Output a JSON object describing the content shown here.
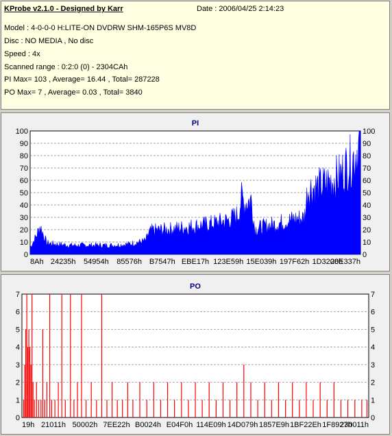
{
  "header": {
    "title": "KProbe v2.1.0 - Designed by Karr",
    "date": "Date : 2006/04/25 2:14:23",
    "lines": [
      "Model : 4-0-0-0 H:LITE-ON DVDRW SHM-165P6S MV8D",
      "Disc : NO MEDIA , No disc",
      "Speed : 4x",
      "Scanned range : 0:2:0 (0) - 2304CAh",
      "PI Max= 103 , Average= 16.44 , Total= 287228",
      "PO Max= 7 , Average= 0.03 , Total= 3840"
    ]
  },
  "colors": {
    "pi": "#0000ff",
    "po": "#ff0000",
    "grid": "#808080",
    "plot_bg": "#ffffff"
  },
  "chart_data": [
    {
      "type": "area",
      "title": "PI",
      "ylim": [
        0,
        100
      ],
      "yticks": [
        0,
        10,
        20,
        30,
        40,
        50,
        60,
        70,
        80,
        90,
        100
      ],
      "xtick_labels": [
        "8Ah",
        "24235h",
        "54954h",
        "85576h",
        "B7547h",
        "EBE17h",
        "123E59h",
        "15E039h",
        "197F62h",
        "1D3208h",
        "20E337h"
      ],
      "x": [
        0.0,
        0.02,
        0.03,
        0.05,
        0.08,
        0.12,
        0.2,
        0.25,
        0.3,
        0.35,
        0.36,
        0.37,
        0.42,
        0.5,
        0.55,
        0.6,
        0.63,
        0.64,
        0.65,
        0.67,
        0.68,
        0.7,
        0.75,
        0.8,
        0.83,
        0.84,
        0.85,
        0.88,
        0.9,
        0.92,
        0.94,
        0.96,
        0.98,
        0.99,
        1.0
      ],
      "y": [
        6,
        17,
        25,
        10,
        9,
        8,
        8,
        8,
        9,
        12,
        19,
        21,
        22,
        25,
        27,
        30,
        35,
        50,
        45,
        48,
        22,
        24,
        27,
        31,
        32,
        57,
        58,
        60,
        63,
        66,
        70,
        78,
        85,
        92,
        103
      ],
      "peak": 103
    },
    {
      "type": "bar",
      "title": "PO",
      "ylim": [
        0,
        7
      ],
      "yticks": [
        0,
        1,
        2,
        3,
        4,
        5,
        6,
        7
      ],
      "xtick_labels": [
        "19h",
        "21011h",
        "50002h",
        "7EE22h",
        "B0024h",
        "E04F0h",
        "114E09h",
        "14D079h",
        "1857E9h",
        "1BF22Eh",
        "1F8927h",
        "230011h"
      ],
      "bars": [
        {
          "x": 0.005,
          "y": 1
        },
        {
          "x": 0.008,
          "y": 3
        },
        {
          "x": 0.011,
          "y": 5
        },
        {
          "x": 0.014,
          "y": 7
        },
        {
          "x": 0.017,
          "y": 4
        },
        {
          "x": 0.02,
          "y": 5
        },
        {
          "x": 0.023,
          "y": 4
        },
        {
          "x": 0.026,
          "y": 3
        },
        {
          "x": 0.029,
          "y": 7
        },
        {
          "x": 0.032,
          "y": 2
        },
        {
          "x": 0.036,
          "y": 1
        },
        {
          "x": 0.042,
          "y": 2
        },
        {
          "x": 0.048,
          "y": 1
        },
        {
          "x": 0.055,
          "y": 1
        },
        {
          "x": 0.06,
          "y": 5
        },
        {
          "x": 0.066,
          "y": 1
        },
        {
          "x": 0.072,
          "y": 2
        },
        {
          "x": 0.08,
          "y": 7
        },
        {
          "x": 0.086,
          "y": 1
        },
        {
          "x": 0.095,
          "y": 1
        },
        {
          "x": 0.105,
          "y": 2
        },
        {
          "x": 0.115,
          "y": 7
        },
        {
          "x": 0.125,
          "y": 1
        },
        {
          "x": 0.14,
          "y": 7
        },
        {
          "x": 0.15,
          "y": 1
        },
        {
          "x": 0.16,
          "y": 2
        },
        {
          "x": 0.172,
          "y": 7
        },
        {
          "x": 0.185,
          "y": 1
        },
        {
          "x": 0.2,
          "y": 2
        },
        {
          "x": 0.215,
          "y": 1
        },
        {
          "x": 0.23,
          "y": 7
        },
        {
          "x": 0.245,
          "y": 1
        },
        {
          "x": 0.26,
          "y": 2
        },
        {
          "x": 0.275,
          "y": 1
        },
        {
          "x": 0.29,
          "y": 1
        },
        {
          "x": 0.305,
          "y": 2
        },
        {
          "x": 0.32,
          "y": 1
        },
        {
          "x": 0.34,
          "y": 2
        },
        {
          "x": 0.36,
          "y": 1
        },
        {
          "x": 0.38,
          "y": 2
        },
        {
          "x": 0.4,
          "y": 1
        },
        {
          "x": 0.42,
          "y": 2
        },
        {
          "x": 0.44,
          "y": 1
        },
        {
          "x": 0.46,
          "y": 2
        },
        {
          "x": 0.48,
          "y": 1
        },
        {
          "x": 0.5,
          "y": 2
        },
        {
          "x": 0.52,
          "y": 1
        },
        {
          "x": 0.54,
          "y": 2
        },
        {
          "x": 0.56,
          "y": 1
        },
        {
          "x": 0.58,
          "y": 2
        },
        {
          "x": 0.6,
          "y": 1
        },
        {
          "x": 0.62,
          "y": 2
        },
        {
          "x": 0.64,
          "y": 3
        },
        {
          "x": 0.66,
          "y": 2
        },
        {
          "x": 0.68,
          "y": 1
        },
        {
          "x": 0.7,
          "y": 2
        },
        {
          "x": 0.72,
          "y": 1
        },
        {
          "x": 0.74,
          "y": 2
        },
        {
          "x": 0.76,
          "y": 1
        },
        {
          "x": 0.78,
          "y": 2
        },
        {
          "x": 0.8,
          "y": 1
        },
        {
          "x": 0.82,
          "y": 2
        },
        {
          "x": 0.84,
          "y": 1
        },
        {
          "x": 0.86,
          "y": 2
        },
        {
          "x": 0.88,
          "y": 1
        },
        {
          "x": 0.9,
          "y": 2
        },
        {
          "x": 0.92,
          "y": 1
        },
        {
          "x": 0.94,
          "y": 1
        },
        {
          "x": 0.96,
          "y": 1
        },
        {
          "x": 0.98,
          "y": 1
        },
        {
          "x": 0.995,
          "y": 1
        }
      ]
    }
  ]
}
